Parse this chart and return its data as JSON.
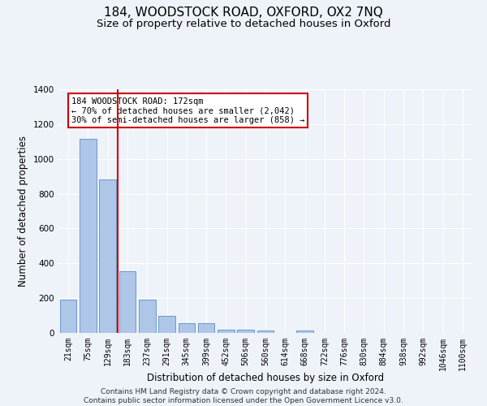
{
  "title": "184, WOODSTOCK ROAD, OXFORD, OX2 7NQ",
  "subtitle": "Size of property relative to detached houses in Oxford",
  "xlabel": "Distribution of detached houses by size in Oxford",
  "ylabel": "Number of detached properties",
  "categories": [
    "21sqm",
    "75sqm",
    "129sqm",
    "183sqm",
    "237sqm",
    "291sqm",
    "345sqm",
    "399sqm",
    "452sqm",
    "506sqm",
    "560sqm",
    "614sqm",
    "668sqm",
    "722sqm",
    "776sqm",
    "830sqm",
    "884sqm",
    "938sqm",
    "992sqm",
    "1046sqm",
    "1100sqm"
  ],
  "values": [
    190,
    1115,
    880,
    355,
    193,
    100,
    58,
    58,
    20,
    18,
    12,
    0,
    12,
    0,
    0,
    0,
    0,
    0,
    0,
    0,
    0
  ],
  "bar_color": "#aec6e8",
  "bar_edge_color": "#5a8fc2",
  "vline_color": "#cc0000",
  "vline_x": 2.5,
  "annotation_text": "184 WOODSTOCK ROAD: 172sqm\n← 70% of detached houses are smaller (2,042)\n30% of semi-detached houses are larger (858) →",
  "annotation_box_color": "#ffffff",
  "annotation_box_edge": "#cc0000",
  "ylim": [
    0,
    1400
  ],
  "yticks": [
    0,
    200,
    400,
    600,
    800,
    1000,
    1200,
    1400
  ],
  "footnote": "Contains HM Land Registry data © Crown copyright and database right 2024.\nContains public sector information licensed under the Open Government Licence v3.0.",
  "bg_color": "#eef2f9",
  "grid_color": "#ffffff",
  "title_fontsize": 11,
  "subtitle_fontsize": 9.5,
  "label_fontsize": 8.5,
  "tick_fontsize": 7,
  "footnote_fontsize": 6.5
}
